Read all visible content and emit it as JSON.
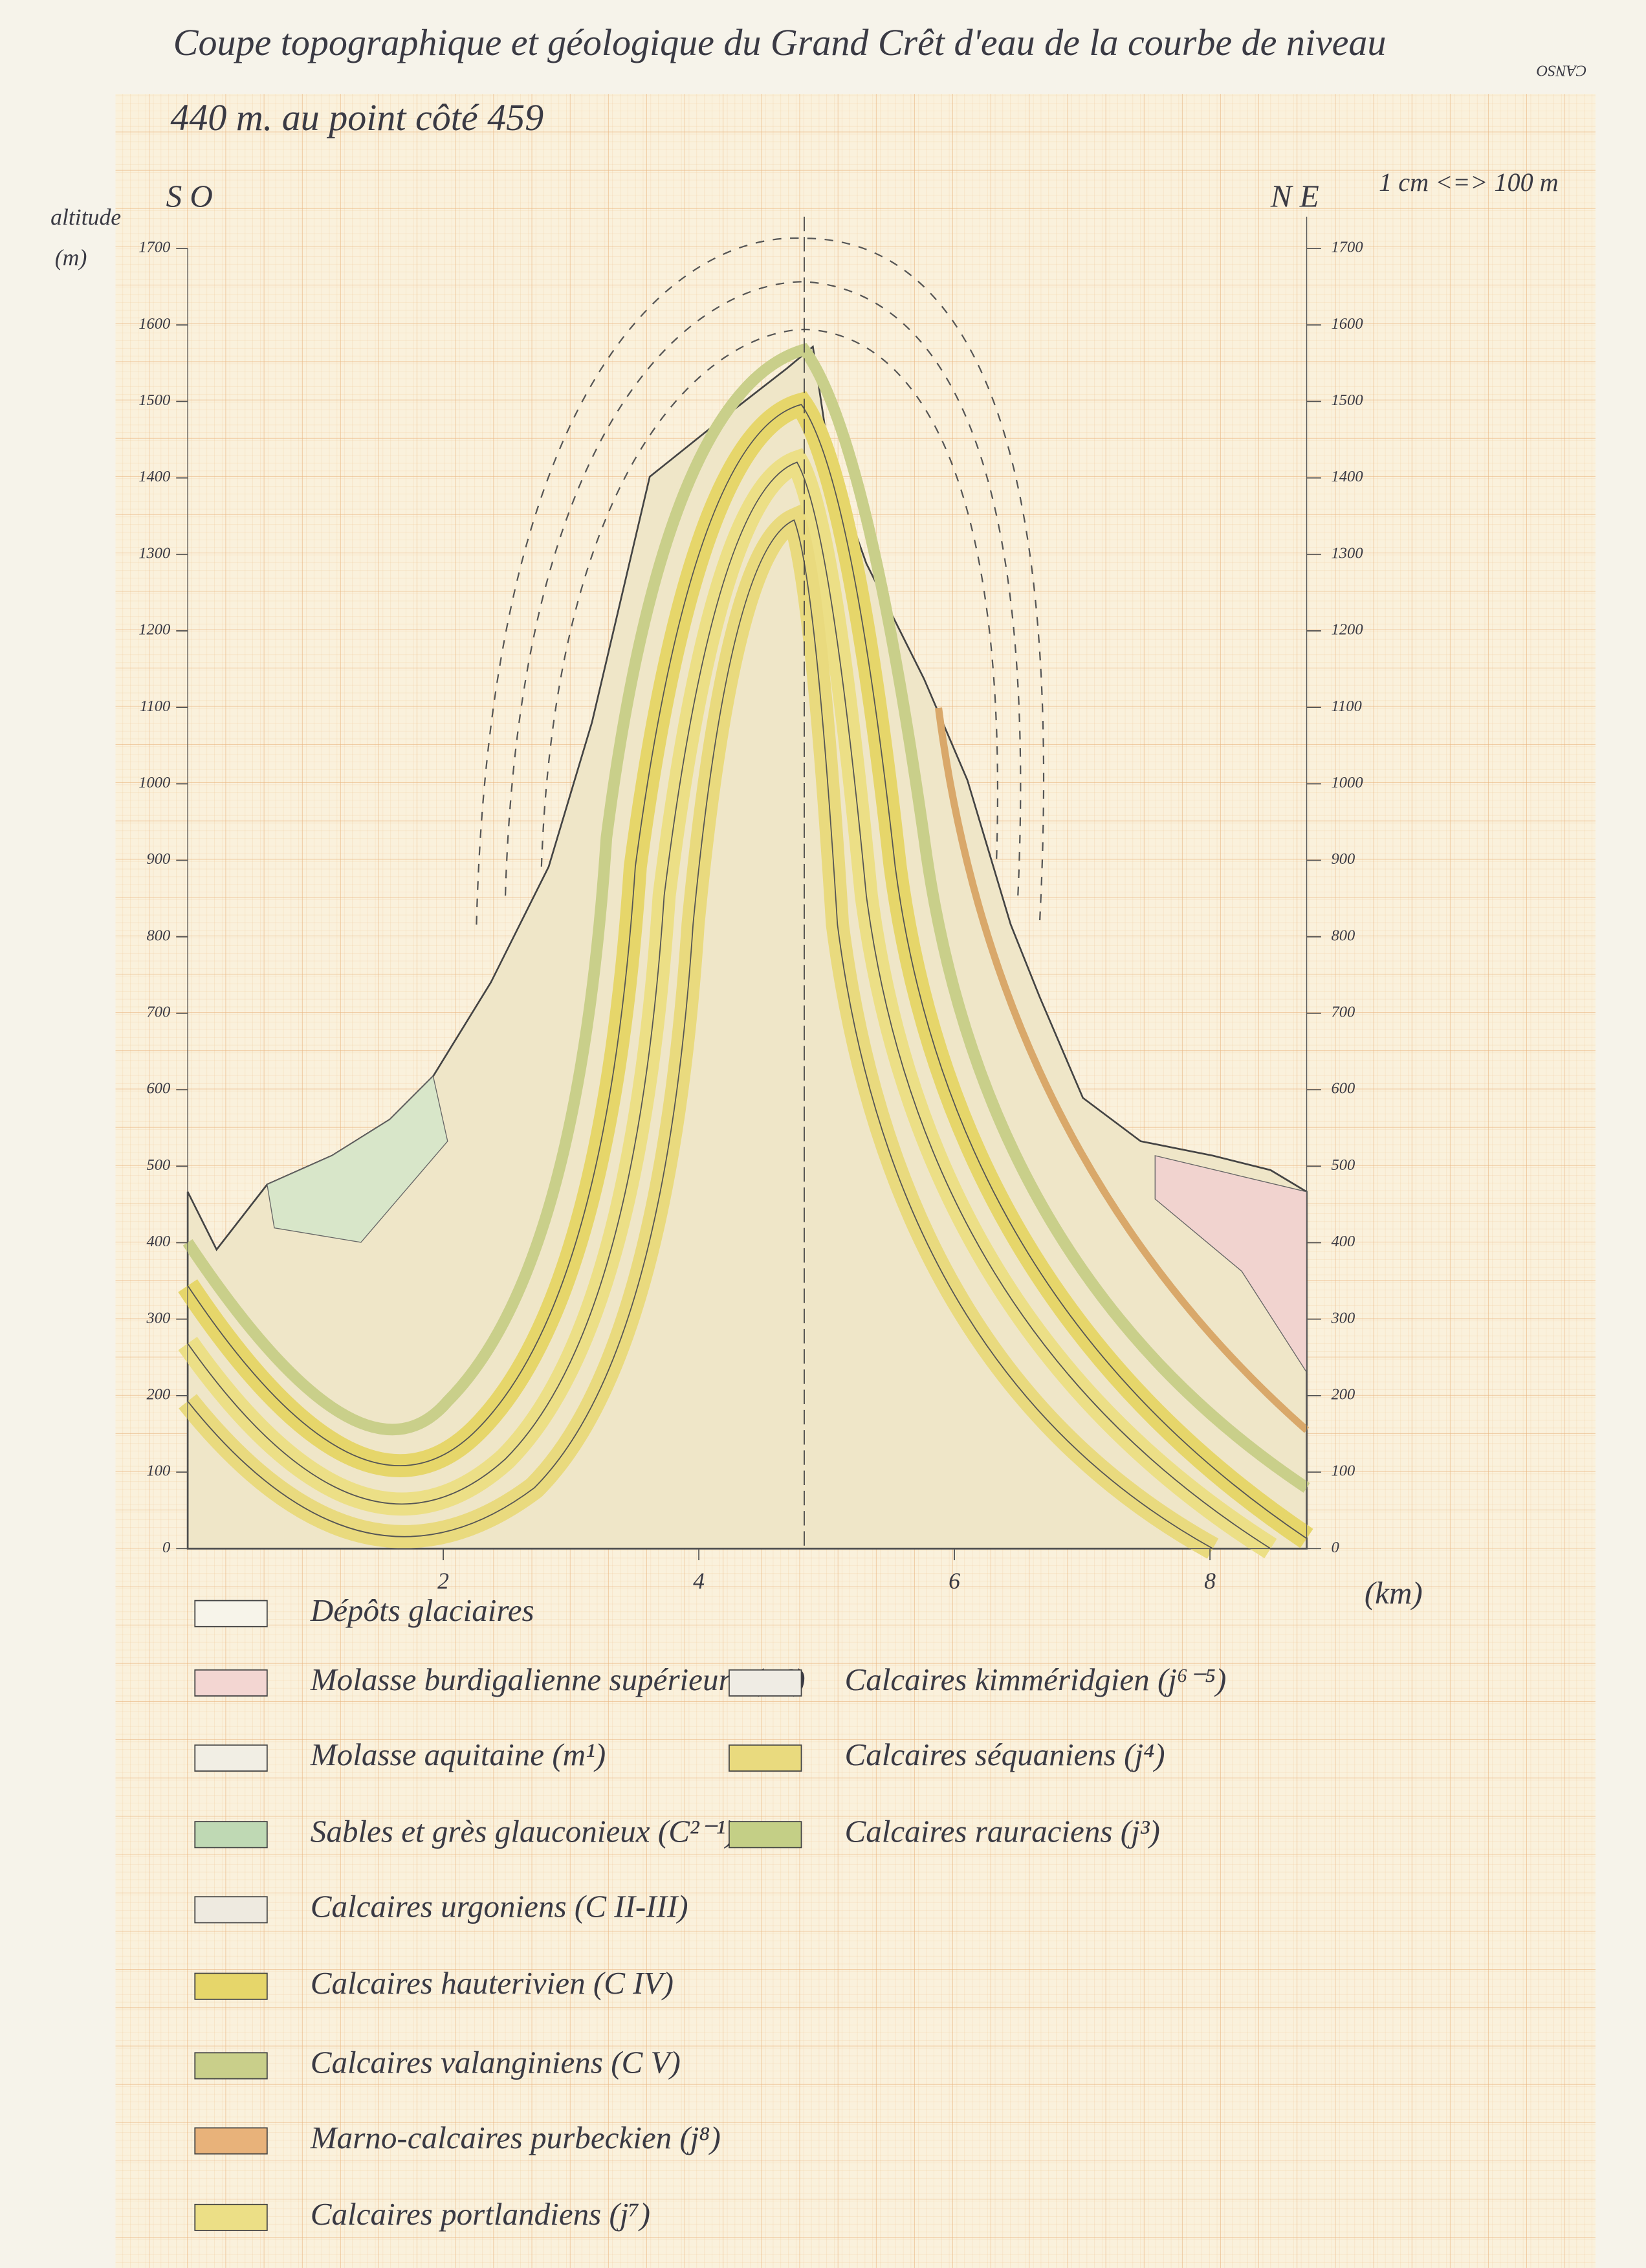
{
  "title": [
    "Coupe topographique et géologique du Grand Crêt d'eau de la courbe de niveau",
    "440 m. au point côté 459"
  ],
  "logo": "CANSO",
  "left_axis": {
    "label": [
      "altitude",
      "(m)"
    ],
    "orientation": "S O",
    "ticks": [
      0,
      100,
      200,
      300,
      400,
      500,
      600,
      700,
      800,
      900,
      1000,
      1100,
      1200,
      1300,
      1400,
      1500,
      1600,
      1700
    ]
  },
  "right_axis": {
    "orientation": "N E",
    "scale_note": "1 cm <=> 100 m",
    "ticks": [
      0,
      100,
      200,
      300,
      400,
      500,
      600,
      700,
      800,
      900,
      1000,
      1100,
      1200,
      1300,
      1400,
      1500,
      1600,
      1700
    ]
  },
  "x_axis": {
    "label": "(km)",
    "ticks": [
      2,
      4,
      6,
      8
    ]
  },
  "legend": [
    {
      "label": "Dépôts glaciaires",
      "color": "#f7f4ea"
    },
    {
      "label": "Molasse burdigalienne supérieure (m²)",
      "color": "#f3d6d2"
    },
    {
      "label": "Molasse aquitaine (m¹)",
      "color": "#f1eee4"
    },
    {
      "label": "Sables et grès glauconieux (C²⁻¹)",
      "color": "#bfd9b4"
    },
    {
      "label": "Calcaires urgoniens (C II-III)",
      "color": "#eeeae0"
    },
    {
      "label": "Calcaires hauterivien (C IV)",
      "color": "#e6d66a"
    },
    {
      "label": "Calcaires valanginiens (C V)",
      "color": "#c9cf8a"
    },
    {
      "label": "Marno-calcaires purbeckien (j⁸)",
      "color": "#e8b27a"
    },
    {
      "label": "Calcaires portlandiens (j⁷)",
      "color": "#ecdf86"
    },
    {
      "label": "Calcaires kimméridgien (j⁶⁻⁵)",
      "color": "#efece4"
    },
    {
      "label": "Calcaires séquaniens (j⁴)",
      "color": "#e9da7e"
    },
    {
      "label": "Calcaires rauraciens (j³)",
      "color": "#c4cf86"
    }
  ]
}
